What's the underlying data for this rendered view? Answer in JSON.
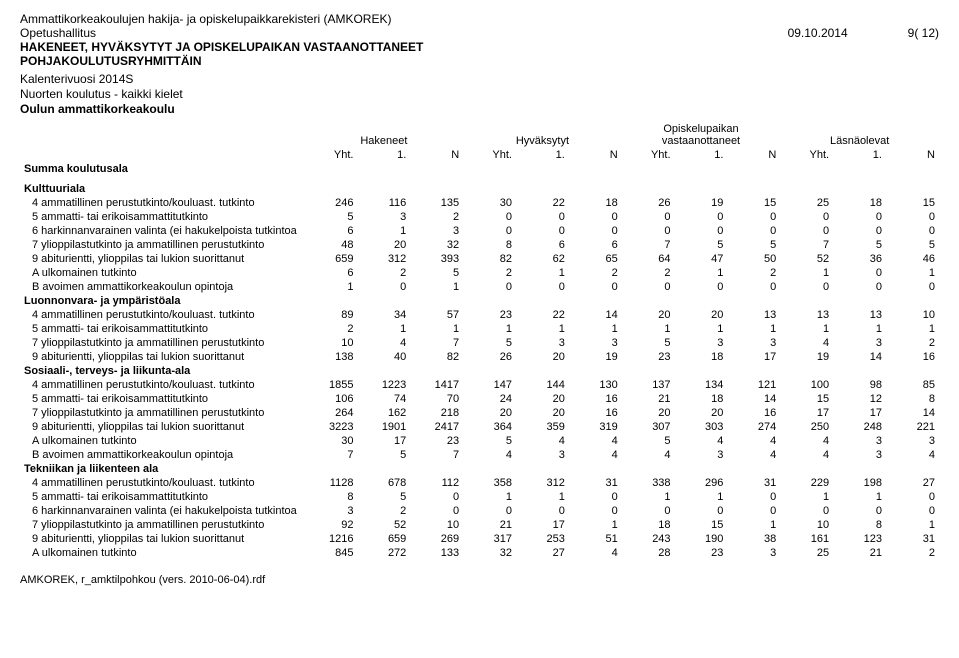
{
  "meta": {
    "registry": "Ammattikorkeakoulujen hakija- ja opiskelupaikkarekisteri (AMKOREK)",
    "org": "Opetushallitus",
    "date": "09.10.2014",
    "page": "9( 12)",
    "title_bold1": "HAKENEET, HYVÄKSYTYT JA OPISKELUPAIKAN VASTAANOTTANEET",
    "title_bold2": "POHJAKOULUTUSRYHMITTÄIN",
    "calendar": "Kalenterivuosi 2014S",
    "program": "Nuorten koulutus - kaikki kielet",
    "school": "Oulun ammattikorkeakoulu",
    "footer": "AMKOREK, r_amktilpohkou (vers. 2010-06-04).rdf"
  },
  "column_groups": [
    "Hakeneet",
    "Hyväksytyt",
    "Opiskelupaikan vastaanottaneet",
    "Läsnäolevat"
  ],
  "sub_headers": [
    "Yht.",
    "1.",
    "N"
  ],
  "summa_label": "Summa koulutusala",
  "sections": [
    {
      "title": "Kulttuuriala",
      "rows": [
        {
          "label": "4 ammatillinen perustutkinto/kouluast. tutkinto",
          "v": [
            246,
            116,
            135,
            30,
            22,
            18,
            26,
            19,
            15,
            25,
            18,
            15
          ]
        },
        {
          "label": "5 ammatti- tai erikoisammattitutkinto",
          "v": [
            5,
            3,
            2,
            0,
            0,
            0,
            0,
            0,
            0,
            0,
            0,
            0
          ]
        },
        {
          "label": "6 harkinnanvarainen valinta (ei hakukelpoista tutkintoa",
          "v": [
            6,
            1,
            3,
            0,
            0,
            0,
            0,
            0,
            0,
            0,
            0,
            0
          ]
        },
        {
          "label": "7 ylioppilastutkinto ja ammatillinen perustutkinto",
          "v": [
            48,
            20,
            32,
            8,
            6,
            6,
            7,
            5,
            5,
            7,
            5,
            5
          ]
        },
        {
          "label": "9 abiturientti, ylioppilas tai lukion suorittanut",
          "v": [
            659,
            312,
            393,
            82,
            62,
            65,
            64,
            47,
            50,
            52,
            36,
            46
          ]
        },
        {
          "label": "A ulkomainen tutkinto",
          "v": [
            6,
            2,
            5,
            2,
            1,
            2,
            2,
            1,
            2,
            1,
            0,
            1
          ]
        },
        {
          "label": "B avoimen ammattikorkeakoulun opintoja",
          "v": [
            1,
            0,
            1,
            0,
            0,
            0,
            0,
            0,
            0,
            0,
            0,
            0
          ]
        }
      ]
    },
    {
      "title": "Luonnonvara- ja ympäristöala",
      "rows": [
        {
          "label": "4 ammatillinen perustutkinto/kouluast. tutkinto",
          "v": [
            89,
            34,
            57,
            23,
            22,
            14,
            20,
            20,
            13,
            13,
            13,
            10
          ]
        },
        {
          "label": "5 ammatti- tai erikoisammattitutkinto",
          "v": [
            2,
            1,
            1,
            1,
            1,
            1,
            1,
            1,
            1,
            1,
            1,
            1
          ]
        },
        {
          "label": "7 ylioppilastutkinto ja ammatillinen perustutkinto",
          "v": [
            10,
            4,
            7,
            5,
            3,
            3,
            5,
            3,
            3,
            4,
            3,
            2
          ]
        },
        {
          "label": "9 abiturientti, ylioppilas tai lukion suorittanut",
          "v": [
            138,
            40,
            82,
            26,
            20,
            19,
            23,
            18,
            17,
            19,
            14,
            16
          ]
        }
      ]
    },
    {
      "title": "Sosiaali-, terveys- ja liikunta-ala",
      "rows": [
        {
          "label": "4 ammatillinen perustutkinto/kouluast. tutkinto",
          "v": [
            1855,
            1223,
            1417,
            147,
            144,
            130,
            137,
            134,
            121,
            100,
            98,
            85
          ]
        },
        {
          "label": "5 ammatti- tai erikoisammattitutkinto",
          "v": [
            106,
            74,
            70,
            24,
            20,
            16,
            21,
            18,
            14,
            15,
            12,
            8
          ]
        },
        {
          "label": "7 ylioppilastutkinto ja ammatillinen perustutkinto",
          "v": [
            264,
            162,
            218,
            20,
            20,
            16,
            20,
            20,
            16,
            17,
            17,
            14
          ]
        },
        {
          "label": "9 abiturientti, ylioppilas tai lukion suorittanut",
          "v": [
            3223,
            1901,
            2417,
            364,
            359,
            319,
            307,
            303,
            274,
            250,
            248,
            221
          ]
        },
        {
          "label": "A ulkomainen tutkinto",
          "v": [
            30,
            17,
            23,
            5,
            4,
            4,
            5,
            4,
            4,
            4,
            3,
            3
          ]
        },
        {
          "label": "B avoimen ammattikorkeakoulun opintoja",
          "v": [
            7,
            5,
            7,
            4,
            3,
            4,
            4,
            3,
            4,
            4,
            3,
            4
          ]
        }
      ]
    },
    {
      "title": "Tekniikan ja liikenteen ala",
      "rows": [
        {
          "label": "4 ammatillinen perustutkinto/kouluast. tutkinto",
          "v": [
            1128,
            678,
            112,
            358,
            312,
            31,
            338,
            296,
            31,
            229,
            198,
            27
          ]
        },
        {
          "label": "5 ammatti- tai erikoisammattitutkinto",
          "v": [
            8,
            5,
            0,
            1,
            1,
            0,
            1,
            1,
            0,
            1,
            1,
            0
          ]
        },
        {
          "label": "6 harkinnanvarainen valinta (ei hakukelpoista tutkintoa",
          "v": [
            3,
            2,
            0,
            0,
            0,
            0,
            0,
            0,
            0,
            0,
            0,
            0
          ]
        },
        {
          "label": "7 ylioppilastutkinto ja ammatillinen perustutkinto",
          "v": [
            92,
            52,
            10,
            21,
            17,
            1,
            18,
            15,
            1,
            10,
            8,
            1
          ]
        },
        {
          "label": "9 abiturientti, ylioppilas tai lukion suorittanut",
          "v": [
            1216,
            659,
            269,
            317,
            253,
            51,
            243,
            190,
            38,
            161,
            123,
            31
          ]
        },
        {
          "label": "A ulkomainen tutkinto",
          "v": [
            845,
            272,
            133,
            32,
            27,
            4,
            28,
            23,
            3,
            25,
            21,
            2
          ]
        }
      ]
    }
  ]
}
